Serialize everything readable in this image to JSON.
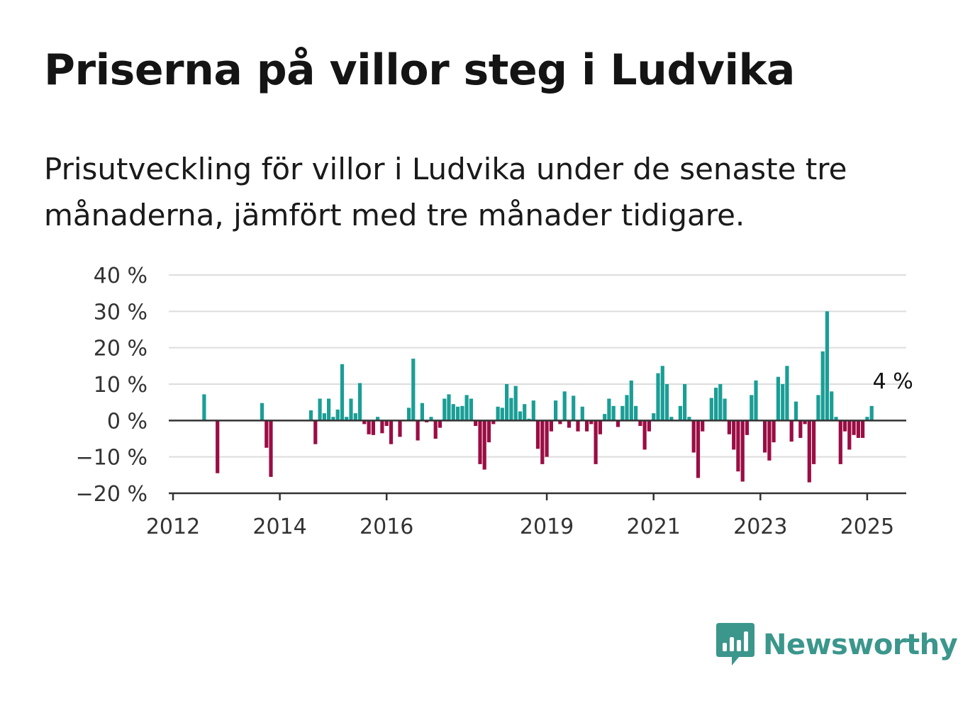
{
  "title": "Priserna på villor steg i Ludvika",
  "subtitle": "Prisutveckling för villor i Ludvika under de senaste tre månaderna, jämfört med tre månader tidigare.",
  "logo": {
    "text": "Newsworthy",
    "icon": "newsworthy-bar-chart-icon",
    "color": "#3b968c"
  },
  "colors": {
    "positive": "#1a9e96",
    "negative": "#9b0d44",
    "grid": "#dddddd",
    "axis": "#333333"
  },
  "chart_data": {
    "type": "bar",
    "x_unit": "month",
    "start": "2012-08",
    "end": "2025-01",
    "ylim": [
      -20,
      40
    ],
    "yticks": [
      -20,
      -10,
      0,
      10,
      20,
      30,
      40
    ],
    "ytick_labels": [
      "−20 %",
      "−10 %",
      "0 %",
      "10 %",
      "20 %",
      "30 %",
      "40 %"
    ],
    "xtick_labels": [
      {
        "year": 2012,
        "label": "2012"
      },
      {
        "year": 2014,
        "label": "2014"
      },
      {
        "year": 2016,
        "label": "2016"
      },
      {
        "year": 2019,
        "label": "2019"
      },
      {
        "year": 2021,
        "label": "2021"
      },
      {
        "year": 2023,
        "label": "2023"
      },
      {
        "year": 2025,
        "label": "2025"
      }
    ],
    "annotation": {
      "label": "4 %",
      "value": 4
    },
    "grid": true,
    "values": [
      7.2,
      null,
      null,
      -14.5,
      null,
      null,
      null,
      null,
      null,
      null,
      null,
      null,
      null,
      4.8,
      -7.5,
      -15.5,
      null,
      null,
      null,
      null,
      null,
      null,
      null,
      null,
      2.8,
      -6.5,
      6.0,
      2.0,
      6.0,
      1.0,
      3.0,
      15.5,
      1.0,
      6.0,
      2.0,
      10.3,
      -1.0,
      -3.8,
      -4.0,
      1.0,
      -3.5,
      -1.5,
      -6.5,
      null,
      -4.5,
      null,
      3.5,
      17.0,
      -5.5,
      4.8,
      -0.5,
      1.0,
      -5.0,
      -2.0,
      6.0,
      7.2,
      4.5,
      3.8,
      4.0,
      7.0,
      6.0,
      -1.5,
      -12.0,
      -13.5,
      -6.0,
      -1.0,
      3.8,
      3.5,
      10.0,
      6.2,
      9.5,
      2.5,
      4.5,
      0.5,
      5.5,
      -7.8,
      -12.0,
      -10.0,
      -3.0,
      5.5,
      -1.0,
      8.0,
      -2.0,
      6.8,
      -3.0,
      3.8,
      -3.0,
      -1.0,
      -12.0,
      -3.8,
      1.8,
      6.0,
      4.0,
      -1.8,
      4.0,
      7.0,
      11.0,
      4.0,
      -1.5,
      -8.0,
      -3.0,
      2.0,
      13.0,
      15.0,
      10.0,
      1.0,
      null,
      4.0,
      10.0,
      1.0,
      -8.8,
      -15.8,
      -3.0,
      null,
      6.2,
      9.0,
      10.0,
      6.0,
      -3.8,
      -8.0,
      -14.0,
      -16.8,
      -4.0,
      7.0,
      11.0,
      null,
      -8.8,
      -11.0,
      -6.0,
      12.0,
      10.0,
      15.0,
      -5.8,
      5.2,
      -4.8,
      -1.0,
      -17.0,
      -12.0,
      7.0,
      19.0,
      30.0,
      8.0,
      1.0,
      -12.0,
      -3.0,
      -8.0,
      -4.0,
      -4.8,
      -4.8,
      1.0,
      4.0
    ]
  }
}
